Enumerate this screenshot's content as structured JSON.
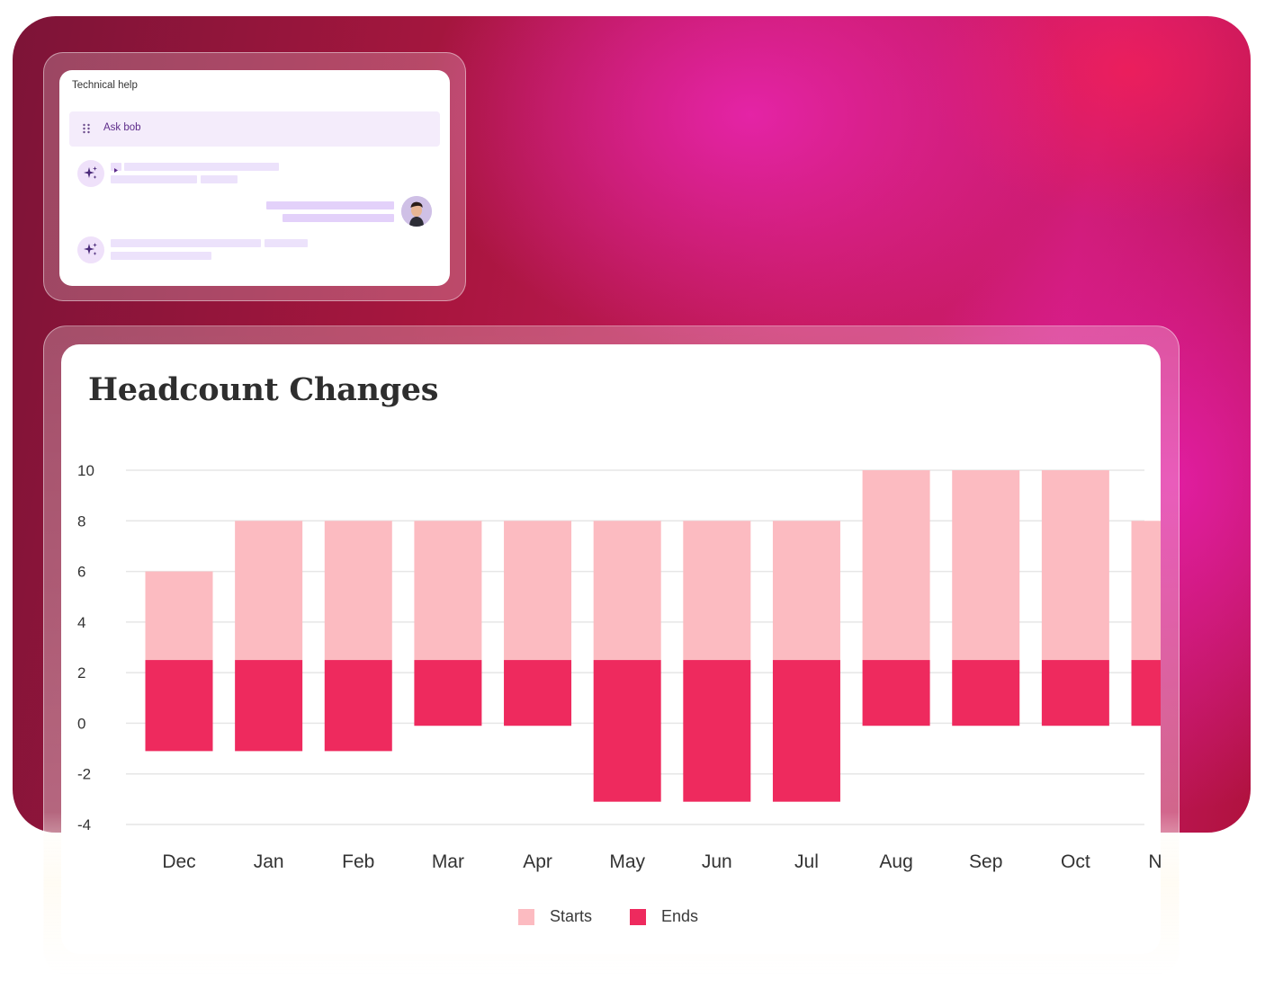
{
  "chat": {
    "title": "Technical help",
    "ask_label": "Ask bob",
    "icons": {
      "drag": "drag-handle-icon",
      "ai": "sparkles-icon",
      "play": "play-icon",
      "user": "user-avatar"
    }
  },
  "colors": {
    "starts": "#fcbbc1",
    "ends": "#ee2a5e",
    "accent_purple": "#5d2b8a",
    "row_bg": "#f4ecfb"
  },
  "chart_data": {
    "type": "bar",
    "title": "Headcount Changes",
    "categories": [
      "Dec",
      "Jan",
      "Feb",
      "Mar",
      "Apr",
      "May",
      "Jun",
      "Jul",
      "Aug",
      "Sep",
      "Oct",
      "Nov"
    ],
    "series": [
      {
        "name": "Starts",
        "values": [
          6,
          8,
          8,
          8,
          8,
          8,
          8,
          8,
          10,
          10,
          10,
          8
        ]
      },
      {
        "name": "Ends",
        "values": [
          -1.1,
          -1.1,
          -1.1,
          -0.1,
          -0.1,
          -3.1,
          -3.1,
          -3.1,
          -0.1,
          -0.1,
          -0.1,
          -0.1
        ]
      }
    ],
    "ends_top": 2.5,
    "ylim": [
      -4,
      10
    ],
    "yticks": [
      10,
      8,
      6,
      4,
      2,
      0,
      -2,
      -4
    ],
    "grid": true,
    "legend_position": "bottom-center"
  }
}
